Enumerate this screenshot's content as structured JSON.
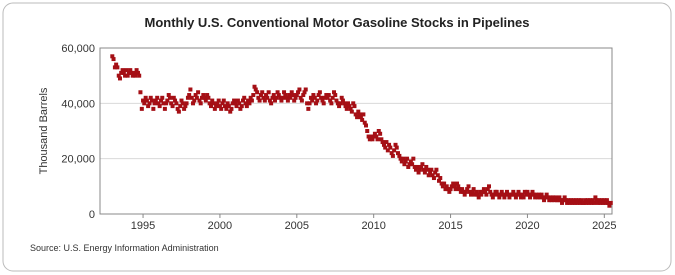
{
  "chart_data": {
    "type": "scatter",
    "title": "Monthly U.S. Conventional Motor Gasoline Stocks in Pipelines",
    "y_label": "Thousand Barrels",
    "source": "Source: U.S. Energy Information Administration",
    "color": "#a50f15",
    "grid": true,
    "xlim": [
      1992.2,
      2025.5
    ],
    "xticks": [
      1995,
      2000,
      2005,
      2010,
      2015,
      2020,
      2025
    ],
    "ylim": [
      0,
      60000
    ],
    "yticks": [
      0,
      {
        "value": 20000,
        "label": "20,000"
      },
      {
        "value": 40000,
        "label": "40,000"
      },
      {
        "value": 60000,
        "label": "60,000"
      }
    ],
    "x": [
      1993.0,
      1993.08,
      1993.17,
      1993.25,
      1993.33,
      1993.42,
      1993.5,
      1993.58,
      1993.67,
      1993.75,
      1993.83,
      1993.92,
      1994.0,
      1994.08,
      1994.17,
      1994.25,
      1994.33,
      1994.42,
      1994.5,
      1994.58,
      1994.67,
      1994.75,
      1994.83,
      1994.92,
      1995.0,
      1995.08,
      1995.17,
      1995.25,
      1995.33,
      1995.42,
      1995.5,
      1995.58,
      1995.67,
      1995.75,
      1995.83,
      1995.92,
      1996.0,
      1996.08,
      1996.17,
      1996.25,
      1996.33,
      1996.42,
      1996.5,
      1996.58,
      1996.67,
      1996.75,
      1996.83,
      1996.92,
      1997.0,
      1997.08,
      1997.17,
      1997.25,
      1997.33,
      1997.42,
      1997.5,
      1997.58,
      1997.67,
      1997.75,
      1997.83,
      1997.92,
      1998.0,
      1998.08,
      1998.17,
      1998.25,
      1998.33,
      1998.42,
      1998.5,
      1998.58,
      1998.67,
      1998.75,
      1998.83,
      1998.92,
      1999.0,
      1999.08,
      1999.17,
      1999.25,
      1999.33,
      1999.42,
      1999.5,
      1999.58,
      1999.67,
      1999.75,
      1999.83,
      1999.92,
      2000.0,
      2000.08,
      2000.17,
      2000.25,
      2000.33,
      2000.42,
      2000.5,
      2000.58,
      2000.67,
      2000.75,
      2000.83,
      2000.92,
      2001.0,
      2001.08,
      2001.17,
      2001.25,
      2001.33,
      2001.42,
      2001.5,
      2001.58,
      2001.67,
      2001.75,
      2001.83,
      2001.92,
      2002.0,
      2002.08,
      2002.17,
      2002.25,
      2002.33,
      2002.42,
      2002.5,
      2002.58,
      2002.67,
      2002.75,
      2002.83,
      2002.92,
      2003.0,
      2003.08,
      2003.17,
      2003.25,
      2003.33,
      2003.42,
      2003.5,
      2003.58,
      2003.67,
      2003.75,
      2003.83,
      2003.92,
      2004.0,
      2004.08,
      2004.17,
      2004.25,
      2004.33,
      2004.42,
      2004.5,
      2004.58,
      2004.67,
      2004.75,
      2004.83,
      2004.92,
      2005.0,
      2005.08,
      2005.17,
      2005.25,
      2005.33,
      2005.42,
      2005.5,
      2005.58,
      2005.67,
      2005.75,
      2005.83,
      2005.92,
      2006.0,
      2006.08,
      2006.17,
      2006.25,
      2006.33,
      2006.42,
      2006.5,
      2006.58,
      2006.67,
      2006.75,
      2006.83,
      2006.92,
      2007.0,
      2007.08,
      2007.17,
      2007.25,
      2007.33,
      2007.42,
      2007.5,
      2007.58,
      2007.67,
      2007.75,
      2007.83,
      2007.92,
      2008.0,
      2008.08,
      2008.17,
      2008.25,
      2008.33,
      2008.42,
      2008.5,
      2008.58,
      2008.67,
      2008.75,
      2008.83,
      2008.92,
      2009.0,
      2009.08,
      2009.17,
      2009.25,
      2009.33,
      2009.42,
      2009.5,
      2009.58,
      2009.67,
      2009.75,
      2009.83,
      2009.92,
      2010.0,
      2010.08,
      2010.17,
      2010.25,
      2010.33,
      2010.42,
      2010.5,
      2010.58,
      2010.67,
      2010.75,
      2010.83,
      2010.92,
      2011.0,
      2011.08,
      2011.17,
      2011.25,
      2011.33,
      2011.42,
      2011.5,
      2011.58,
      2011.67,
      2011.75,
      2011.83,
      2011.92,
      2012.0,
      2012.08,
      2012.17,
      2012.25,
      2012.33,
      2012.42,
      2012.5,
      2012.58,
      2012.67,
      2012.75,
      2012.83,
      2012.92,
      2013.0,
      2013.08,
      2013.17,
      2013.25,
      2013.33,
      2013.42,
      2013.5,
      2013.58,
      2013.67,
      2013.75,
      2013.83,
      2013.92,
      2014.0,
      2014.08,
      2014.17,
      2014.25,
      2014.33,
      2014.42,
      2014.5,
      2014.58,
      2014.67,
      2014.75,
      2014.83,
      2014.92,
      2015.0,
      2015.08,
      2015.17,
      2015.25,
      2015.33,
      2015.42,
      2015.5,
      2015.58,
      2015.67,
      2015.75,
      2015.83,
      2015.92,
      2016.0,
      2016.08,
      2016.17,
      2016.25,
      2016.33,
      2016.42,
      2016.5,
      2016.58,
      2016.67,
      2016.75,
      2016.83,
      2016.92,
      2017.0,
      2017.08,
      2017.17,
      2017.25,
      2017.33,
      2017.42,
      2017.5,
      2017.58,
      2017.67,
      2017.75,
      2017.83,
      2017.92,
      2018.0,
      2018.08,
      2018.17,
      2018.25,
      2018.33,
      2018.42,
      2018.5,
      2018.58,
      2018.67,
      2018.75,
      2018.83,
      2018.92,
      2019.0,
      2019.08,
      2019.17,
      2019.25,
      2019.33,
      2019.42,
      2019.5,
      2019.58,
      2019.67,
      2019.75,
      2019.83,
      2019.92,
      2020.0,
      2020.08,
      2020.17,
      2020.25,
      2020.33,
      2020.42,
      2020.5,
      2020.58,
      2020.67,
      2020.75,
      2020.83,
      2020.92,
      2021.0,
      2021.08,
      2021.17,
      2021.25,
      2021.33,
      2021.42,
      2021.5,
      2021.58,
      2021.67,
      2021.75,
      2021.83,
      2021.92,
      2022.0,
      2022.08,
      2022.17,
      2022.25,
      2022.33,
      2022.42,
      2022.5,
      2022.58,
      2022.67,
      2022.75,
      2022.83,
      2022.92,
      2023.0,
      2023.08,
      2023.17,
      2023.25,
      2023.33,
      2023.42,
      2023.5,
      2023.58,
      2023.67,
      2023.75,
      2023.83,
      2023.92,
      2024.0,
      2024.08,
      2024.17,
      2024.25,
      2024.33,
      2024.42,
      2024.5,
      2024.58,
      2024.67,
      2024.75,
      2024.83,
      2024.92,
      2025.0,
      2025.08,
      2025.17,
      2025.25,
      2025.33,
      2025.42
    ],
    "values": [
      57000,
      56000,
      53000,
      54000,
      53000,
      50000,
      49000,
      51000,
      52000,
      51000,
      50000,
      52000,
      50000,
      51000,
      52000,
      51000,
      50000,
      51000,
      50000,
      52000,
      51000,
      50000,
      44000,
      38000,
      41000,
      40000,
      42000,
      41000,
      39000,
      40000,
      42000,
      41000,
      38000,
      40000,
      41000,
      42000,
      40000,
      39000,
      41000,
      42000,
      40000,
      38000,
      40000,
      41000,
      43000,
      42000,
      40000,
      39000,
      42000,
      41000,
      40000,
      38000,
      37000,
      39000,
      41000,
      40000,
      38000,
      39000,
      40000,
      42000,
      43000,
      45000,
      42000,
      40000,
      41000,
      43000,
      42000,
      44000,
      41000,
      40000,
      42000,
      43000,
      42000,
      41000,
      43000,
      42000,
      40000,
      39000,
      41000,
      40000,
      38000,
      39000,
      40000,
      41000,
      39000,
      38000,
      40000,
      41000,
      39000,
      38000,
      40000,
      39000,
      37000,
      38000,
      40000,
      41000,
      40000,
      39000,
      41000,
      40000,
      38000,
      39000,
      41000,
      42000,
      40000,
      39000,
      41000,
      40000,
      42000,
      41000,
      43000,
      46000,
      45000,
      44000,
      42000,
      41000,
      43000,
      44000,
      42000,
      41000,
      43000,
      42000,
      44000,
      41000,
      40000,
      42000,
      43000,
      41000,
      42000,
      44000,
      43000,
      42000,
      41000,
      42000,
      44000,
      43000,
      42000,
      41000,
      43000,
      42000,
      44000,
      43000,
      41000,
      42000,
      43000,
      44000,
      45000,
      42000,
      41000,
      43000,
      44000,
      45000,
      40000,
      38000,
      40000,
      42000,
      41000,
      43000,
      42000,
      40000,
      41000,
      43000,
      44000,
      42000,
      41000,
      40000,
      42000,
      43000,
      42000,
      43000,
      41000,
      40000,
      42000,
      44000,
      43000,
      41000,
      40000,
      39000,
      40000,
      42000,
      41000,
      40000,
      39000,
      38000,
      40000,
      39000,
      38000,
      37000,
      40000,
      39000,
      36000,
      35000,
      37000,
      36000,
      35000,
      34000,
      36000,
      33000,
      32000,
      30000,
      28000,
      27000,
      28000,
      27000,
      28000,
      29000,
      28000,
      27000,
      30000,
      29000,
      27000,
      26000,
      25000,
      24000,
      26000,
      23000,
      25000,
      24000,
      22000,
      21000,
      23000,
      25000,
      24000,
      22000,
      21000,
      20000,
      19000,
      20000,
      18000,
      19000,
      20000,
      17000,
      18000,
      19000,
      18000,
      20000,
      17000,
      16000,
      17000,
      15000,
      16000,
      17000,
      18000,
      16000,
      15000,
      17000,
      16000,
      14000,
      15000,
      16000,
      14000,
      13000,
      15000,
      16000,
      14000,
      12000,
      13000,
      11000,
      10000,
      11000,
      9000,
      10000,
      9000,
      8000,
      9000,
      10000,
      11000,
      10000,
      9000,
      11000,
      10000,
      9000,
      8000,
      9000,
      8000,
      7000,
      8000,
      9000,
      10000,
      8000,
      7000,
      8000,
      9000,
      7000,
      8000,
      7000,
      6000,
      8000,
      7000,
      8000,
      9000,
      8000,
      7000,
      9000,
      10000,
      8000,
      7000,
      6000,
      7000,
      8000,
      8000,
      7000,
      6000,
      7000,
      8000,
      7000,
      6000,
      7000,
      8000,
      7000,
      6000,
      7000,
      7000,
      8000,
      7000,
      6000,
      7000,
      8000,
      7000,
      6000,
      7000,
      6000,
      8000,
      7000,
      8000,
      7000,
      6000,
      7000,
      8000,
      7000,
      6000,
      7000,
      6000,
      7000,
      6000,
      7000,
      6000,
      5000,
      6000,
      7000,
      6000,
      5000,
      6000,
      5000,
      6000,
      5000,
      6000,
      5000,
      5000,
      6000,
      5000,
      4000,
      5000,
      6000,
      5000,
      4000,
      5000,
      4000,
      5000,
      4000,
      5000,
      4000,
      5000,
      4000,
      5000,
      4000,
      5000,
      4000,
      4000,
      5000,
      4000,
      5000,
      4000,
      5000,
      4000,
      5000,
      4000,
      6000,
      5000,
      4000,
      5000,
      4000,
      5000,
      4000,
      5000,
      4000,
      5000,
      4000,
      3000,
      4000
    ]
  }
}
